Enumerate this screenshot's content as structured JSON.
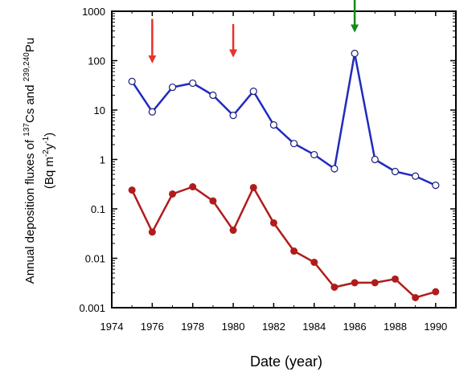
{
  "chart_data": {
    "type": "line",
    "xlabel": "Date (year)",
    "ylabel": {
      "line1_pre": "Annual deposition fluxes of ",
      "cs_sup": "137",
      "cs": "Cs and ",
      "pu_sup": "239,240",
      "pu": "Pu",
      "line2_open": "(Bq m",
      "exp1": "-2",
      "mid": "y",
      "exp2": "-1",
      "line2_close": ")"
    },
    "x_ticks": [
      "1974",
      "1976",
      "1978",
      "1980",
      "1982",
      "1984",
      "1986",
      "1988",
      "1990"
    ],
    "y_ticks": [
      "0.001",
      "0.01",
      "0.1",
      "1",
      "10",
      "100",
      "1000"
    ],
    "xlim": [
      1974,
      1991
    ],
    "ylim": [
      0.001,
      1000
    ],
    "y_scale": "log",
    "grid": false,
    "series": [
      {
        "color": "#1f2bbf",
        "marker": "open-circle",
        "x": [
          1975,
          1976,
          1977,
          1978,
          1979,
          1980,
          1981,
          1982,
          1983,
          1984,
          1985,
          1986,
          1987,
          1988,
          1989,
          1990
        ],
        "values": [
          38,
          9.2,
          29,
          35,
          20,
          7.8,
          24,
          5,
          2.1,
          1.25,
          0.65,
          140,
          1.0,
          0.57,
          0.46,
          0.3
        ]
      },
      {
        "color": "#b01c1c",
        "marker": "filled-circle",
        "x": [
          1975,
          1976,
          1977,
          1978,
          1979,
          1980,
          1981,
          1982,
          1983,
          1984,
          1985,
          1986,
          1987,
          1988,
          1989,
          1990
        ],
        "values": [
          0.24,
          0.034,
          0.2,
          0.28,
          0.145,
          0.037,
          0.27,
          0.052,
          0.014,
          0.0083,
          0.0026,
          0.0032,
          0.0032,
          0.0038,
          0.0016,
          0.0021
        ]
      }
    ],
    "annotations": [
      {
        "type": "arrow",
        "color": "#e8332b",
        "x": 1976,
        "y_from": 700,
        "y_to": 95
      },
      {
        "type": "arrow",
        "color": "#e8332b",
        "x": 1980,
        "y_from": 550,
        "y_to": 125
      },
      {
        "type": "arrow",
        "color": "#16891f",
        "x": 1986,
        "y_from": 2200,
        "y_to": 400
      }
    ]
  }
}
